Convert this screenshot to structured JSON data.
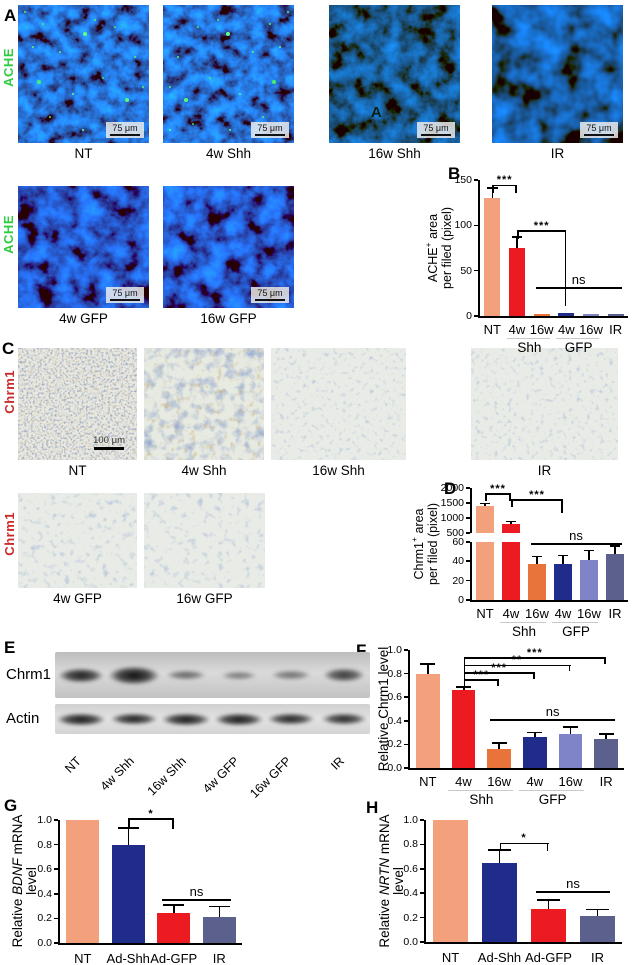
{
  "panels": {
    "A": {
      "label": "A",
      "side_label": "ACHE",
      "side_label_color": "#2ecc40",
      "row1": [
        {
          "caption": "NT",
          "scale": "75 μm"
        },
        {
          "caption": "4w Shh",
          "scale": "75 μm"
        },
        {
          "caption": "16w Shh",
          "scale": "75 μm",
          "artifact": "A"
        },
        {
          "caption": "IR",
          "scale": "75 μm"
        }
      ],
      "row2": [
        {
          "caption": "4w GFP",
          "scale": "75 μm"
        },
        {
          "caption": "16w GFP",
          "scale": "75 μm"
        }
      ]
    },
    "B": {
      "label": "B"
    },
    "C": {
      "label": "C",
      "side_label": "Chrm1",
      "side_label_color": "#cc2a2a",
      "row1": [
        {
          "caption": "NT",
          "scale": "100 μm"
        },
        {
          "caption": "4w Shh"
        },
        {
          "caption": "16w Shh"
        },
        {
          "caption": "IR"
        }
      ],
      "row2": [
        {
          "caption": "4w GFP"
        },
        {
          "caption": "16w GFP"
        }
      ]
    },
    "D": {
      "label": "D"
    },
    "E": {
      "label": "E",
      "rows": [
        {
          "name": "Chrm1",
          "bands": [
            0.92,
            1,
            0.55,
            0.45,
            0.5,
            0.78
          ]
        },
        {
          "name": "Actin",
          "bands": [
            0.95,
            0.92,
            0.95,
            0.95,
            0.9,
            0.88
          ]
        }
      ],
      "lanes": [
        "NT",
        "4w Shh",
        "16w Shh",
        "4w GFP",
        "16w GFP",
        "IR"
      ]
    },
    "F": {
      "label": "F"
    },
    "G": {
      "label": "G"
    },
    "H": {
      "label": "H"
    }
  },
  "chart_data": [
    {
      "id": "B",
      "type": "bar",
      "ylabel_lines": [
        [
          {
            "t": "ACHE"
          },
          {
            "t": "+",
            "sup": true
          },
          {
            "t": " area"
          }
        ],
        [
          {
            "t": "per filed (pixel)"
          }
        ]
      ],
      "categories": [
        "NT",
        "4w",
        "16w",
        "4w",
        "16w",
        "IR"
      ],
      "groups": [
        {
          "label": "Shh",
          "from": 1,
          "to": 2
        },
        {
          "label": "GFP",
          "from": 3,
          "to": 4
        }
      ],
      "values": [
        130,
        75,
        2.5,
        3.5,
        2.5,
        2
      ],
      "errors": [
        10,
        11,
        0,
        0,
        0,
        0
      ],
      "colors": [
        "#F2A17C",
        "#EC1B22",
        "#E8743C",
        "#1F2C8A",
        "#7F83C7",
        "#5C608C"
      ],
      "ylim": [
        0,
        150
      ],
      "yticks": [
        "0",
        "50",
        "100",
        "150"
      ],
      "legend": null,
      "grid": false,
      "annotations": [
        {
          "kind": "bracket",
          "x1": 0,
          "x2": 1,
          "y": 143,
          "label": "***",
          "d1": 7,
          "d2": 7
        },
        {
          "kind": "bracket",
          "x1": 1,
          "x2": 3,
          "y": 93,
          "label": "***",
          "d1": 7,
          "d2": 74
        },
        {
          "kind": "line",
          "x1": 2,
          "x2": 5,
          "y": 30,
          "label": "ns"
        }
      ]
    },
    {
      "id": "D",
      "type": "bar",
      "ylabel_lines": [
        [
          {
            "t": "Chrm1"
          },
          {
            "t": "+",
            "sup": true
          },
          {
            "t": " area"
          }
        ],
        [
          {
            "t": "per filed (pixel)"
          }
        ]
      ],
      "categories": [
        "NT",
        "4w",
        "16w",
        "4w",
        "16w",
        "IR"
      ],
      "groups": [
        {
          "label": "Shh",
          "from": 1,
          "to": 2
        },
        {
          "label": "GFP",
          "from": 3,
          "to": 4
        }
      ],
      "values": [
        1400,
        800,
        37,
        37,
        41,
        47
      ],
      "errors": [
        60,
        55,
        7,
        8,
        9,
        8
      ],
      "colors": [
        "#F2A17C",
        "#EC1B22",
        "#E8743C",
        "#1F2C8A",
        "#7F83C7",
        "#5C608C"
      ],
      "axis_segments": [
        {
          "range": [
            0,
            60
          ],
          "frac": 0.52,
          "ticks": [
            "0",
            "20",
            "40",
            "60"
          ]
        },
        {
          "range": [
            500,
            2000
          ],
          "frac": 0.4,
          "ticks": [
            "500",
            "1000",
            "1500",
            "2000"
          ]
        }
      ],
      "gap_frac": 0.08,
      "legend": null,
      "grid": false,
      "annotations": [
        {
          "kind": "bracket",
          "x1": 0,
          "x2": 1,
          "y": 1780,
          "label": "***",
          "d1": 6,
          "d2": 6
        },
        {
          "kind": "bracket",
          "x1": 1,
          "x2": 3,
          "y": 1580,
          "label": "***",
          "d1": 6,
          "d2": 12
        },
        {
          "kind": "line",
          "x1": 2,
          "x2": 5,
          "y": 57,
          "label": "ns"
        }
      ]
    },
    {
      "id": "F",
      "type": "bar",
      "ylabel_lines": [
        [
          {
            "t": "Relative Chrm1 level",
            "big": true
          }
        ]
      ],
      "categories": [
        "NT",
        "4w",
        "16w",
        "4w",
        "16w",
        "IR"
      ],
      "groups": [
        {
          "label": "Shh",
          "from": 1,
          "to": 2
        },
        {
          "label": "GFP",
          "from": 3,
          "to": 4
        }
      ],
      "values": [
        0.8,
        0.66,
        0.16,
        0.26,
        0.29,
        0.25
      ],
      "errors": [
        0.075,
        0.02,
        0.045,
        0.035,
        0.05,
        0.03
      ],
      "colors": [
        "#F2A17C",
        "#EC1B22",
        "#E8743C",
        "#1F2C8A",
        "#7F83C7",
        "#5C608C"
      ],
      "ylim": [
        0,
        1
      ],
      "yticks": [
        "0.0",
        "0.2",
        "0.4",
        "0.6",
        "0.8",
        "1.0"
      ],
      "legend": null,
      "grid": false,
      "annotations": [
        {
          "kind": "bracket",
          "x1": 1,
          "x2": 2,
          "y": 0.735,
          "label": "***",
          "d1": 8,
          "d2": 5
        },
        {
          "kind": "bracket",
          "x1": 1,
          "x2": 3,
          "y": 0.8,
          "label": "***",
          "d1": 16,
          "d2": 5
        },
        {
          "kind": "bracket",
          "x1": 1,
          "x2": 4,
          "y": 0.862,
          "label": "**",
          "d1": 24,
          "d2": 5
        },
        {
          "kind": "bracket",
          "x1": 1,
          "x2": 5,
          "y": 0.925,
          "label": "***",
          "d1": 31,
          "d2": 5
        },
        {
          "kind": "line",
          "x1": 2,
          "x2": 5,
          "y": 0.4,
          "label": "ns"
        }
      ]
    },
    {
      "id": "G",
      "type": "bar",
      "ylabel_lines": [
        [
          {
            "t": "Relative ",
            "big": true
          },
          {
            "t": "BDNF",
            "i": true,
            "big": true
          },
          {
            "t": " mRNA level",
            "big": true
          }
        ]
      ],
      "categories": [
        "NT",
        "Ad-Shh",
        "Ad-GFP",
        "IR"
      ],
      "values": [
        1.0,
        0.8,
        0.24,
        0.21
      ],
      "errors": [
        0,
        0.13,
        0.065,
        0.08
      ],
      "colors": [
        "#F2A17C",
        "#1F2C8A",
        "#EC1B22",
        "#5C608C"
      ],
      "ylim": [
        0,
        1
      ],
      "yticks": [
        "0.0",
        "0.2",
        "0.4",
        "0.6",
        "0.8",
        "1.0"
      ],
      "legend": null,
      "grid": false,
      "annotations": [
        {
          "kind": "bracket",
          "x1": 1,
          "x2": 2,
          "y": 1.0,
          "label": "*",
          "d1": 9,
          "d2": 9
        },
        {
          "kind": "line",
          "x1": 2,
          "x2": 3,
          "y": 0.345,
          "label": "ns"
        }
      ]
    },
    {
      "id": "H",
      "type": "bar",
      "ylabel_lines": [
        [
          {
            "t": "Relative ",
            "big": true
          },
          {
            "t": "NRTN",
            "i": true,
            "big": true
          },
          {
            "t": " mRNA level",
            "big": true
          }
        ]
      ],
      "categories": [
        "NT",
        "Ad-Shh",
        "Ad-GFP",
        "IR"
      ],
      "values": [
        1.0,
        0.65,
        0.27,
        0.215
      ],
      "errors": [
        0,
        0.1,
        0.07,
        0.045
      ],
      "colors": [
        "#F2A17C",
        "#1F2C8A",
        "#EC1B22",
        "#5C608C"
      ],
      "ylim": [
        0,
        1
      ],
      "yticks": [
        "0.0",
        "0.2",
        "0.4",
        "0.6",
        "0.8",
        "1.0"
      ],
      "legend": null,
      "grid": false,
      "annotations": [
        {
          "kind": "bracket",
          "x1": 1,
          "x2": 2,
          "y": 0.8,
          "label": "*",
          "d1": 7,
          "d2": 7
        },
        {
          "kind": "line",
          "x1": 2,
          "x2": 3,
          "y": 0.4,
          "label": "ns"
        }
      ]
    }
  ]
}
